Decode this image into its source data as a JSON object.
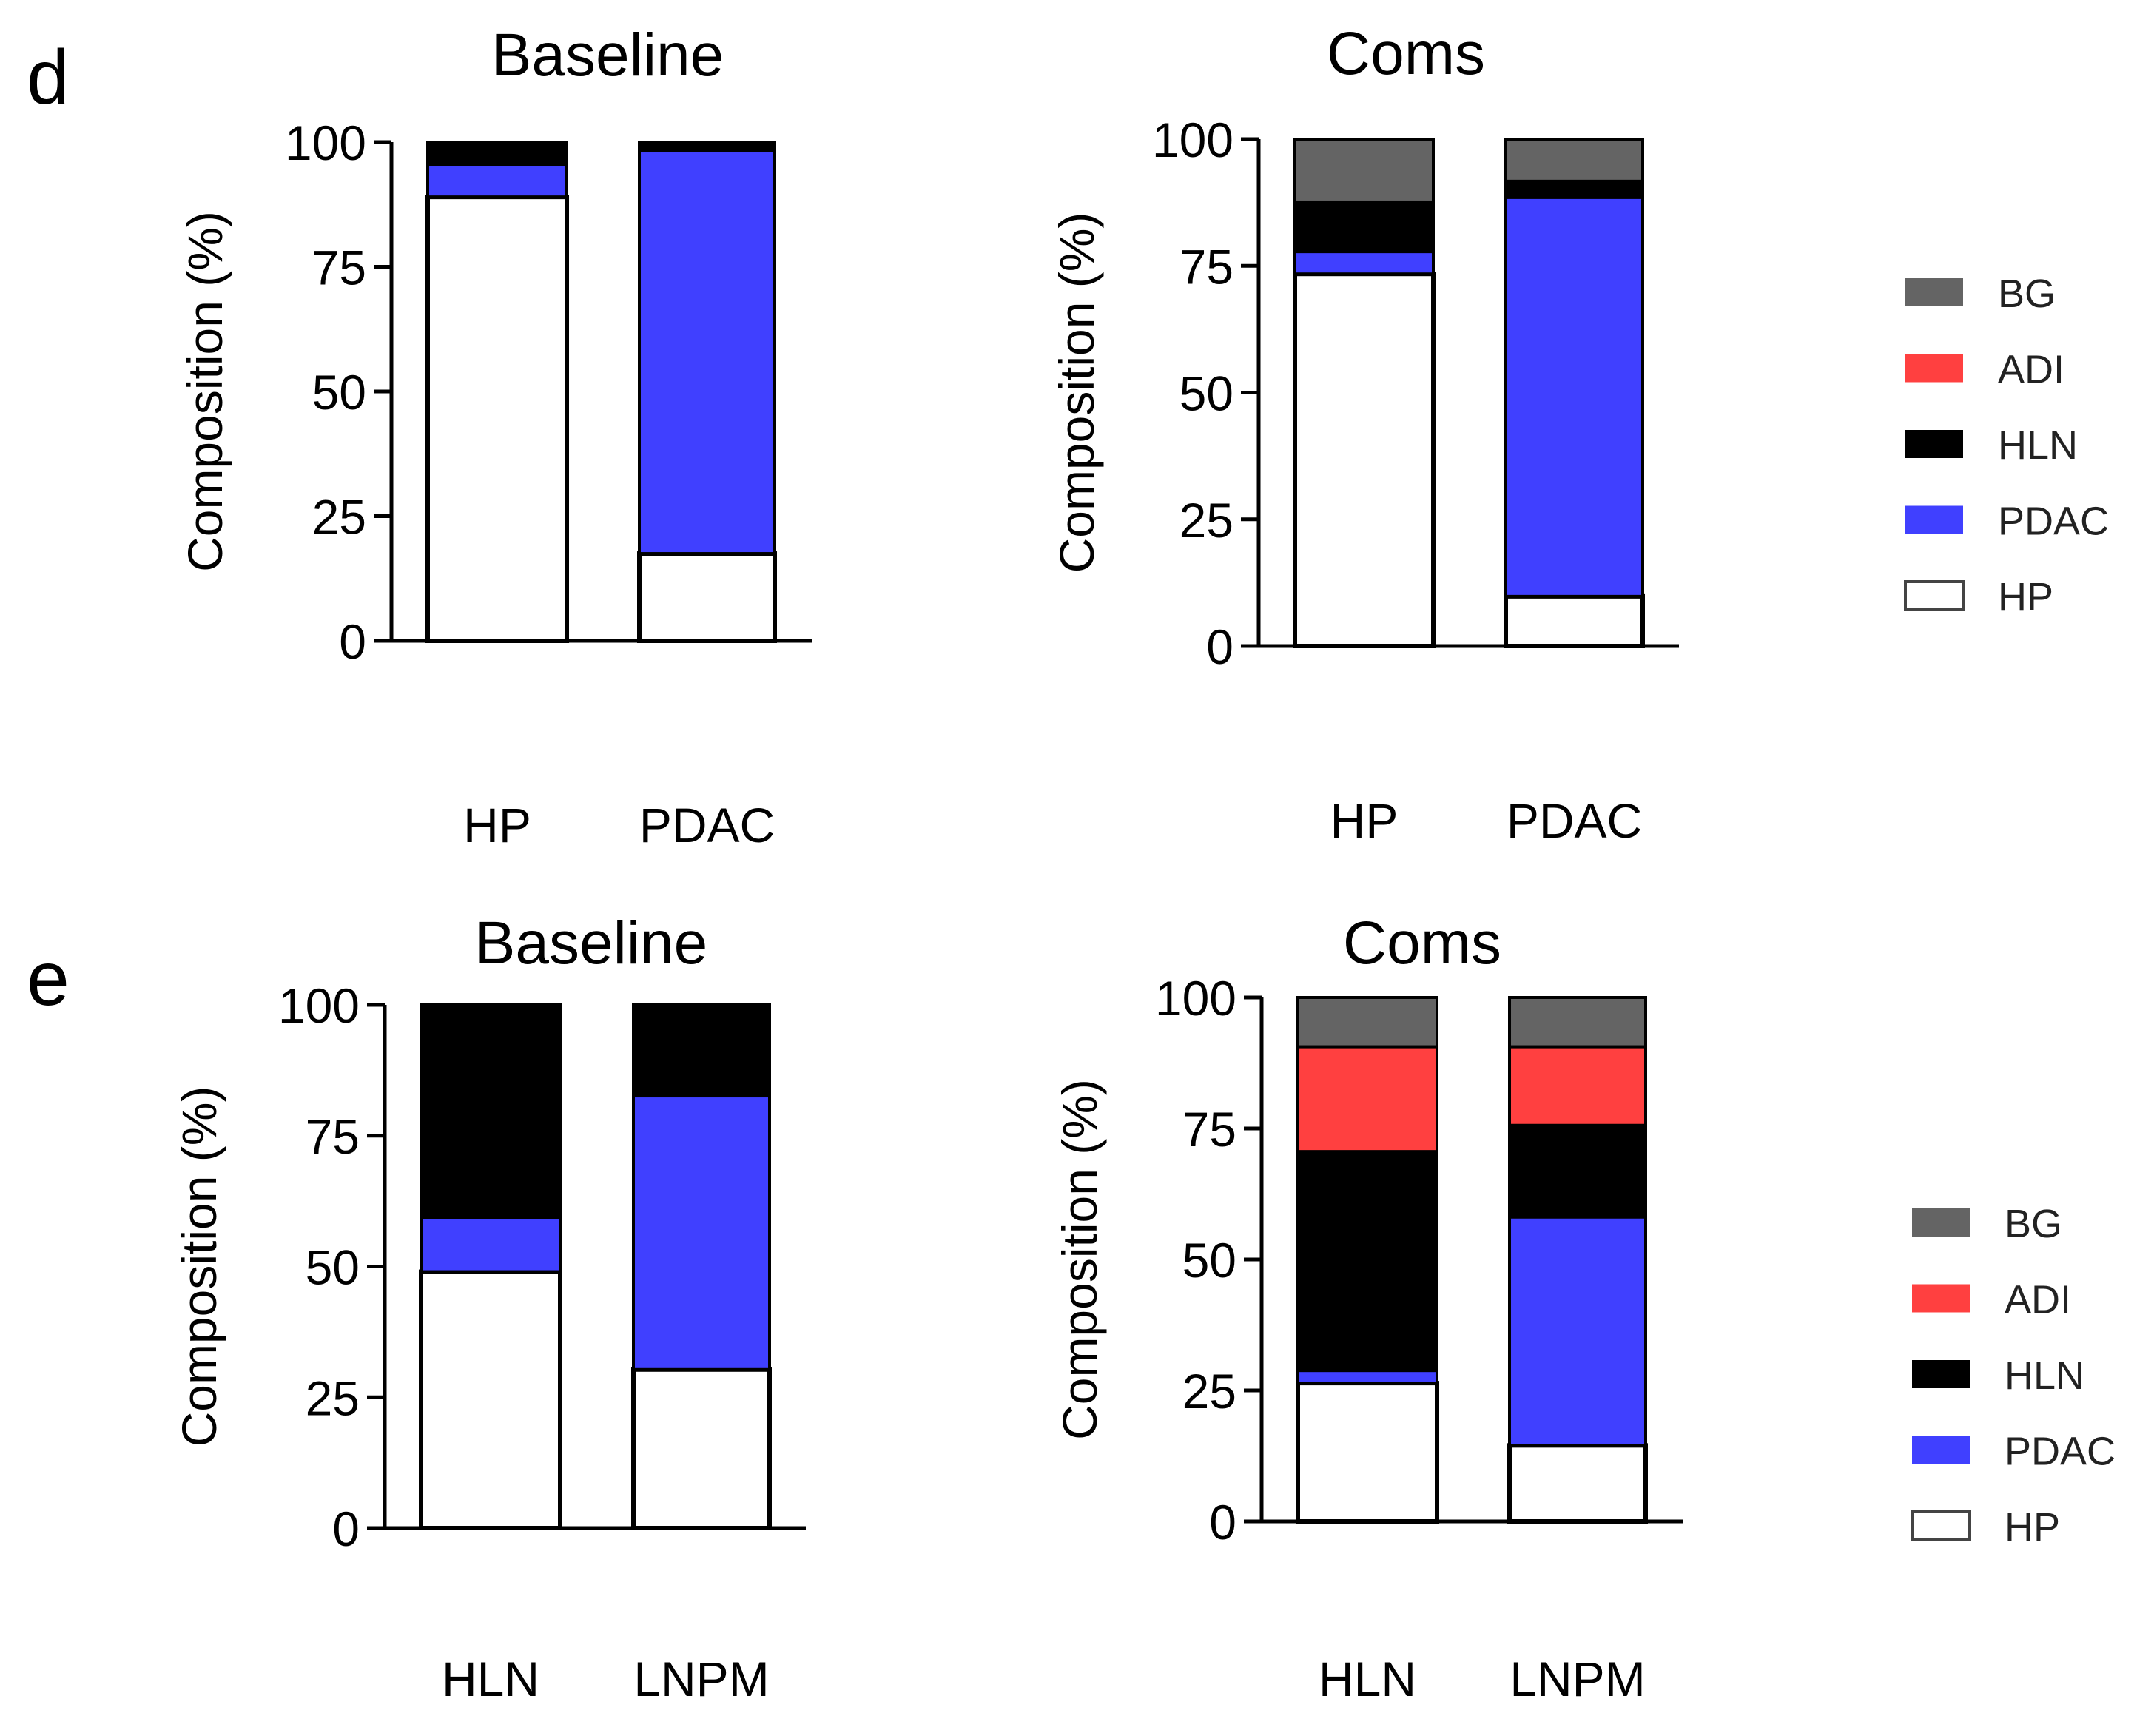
{
  "colors": {
    "BG": "#646464",
    "ADI": "#ff4040",
    "HLN": "#000000",
    "PDAC": "#4040ff",
    "HP": "#ffffff"
  },
  "legend": [
    "BG",
    "ADI",
    "HLN",
    "PDAC",
    "HP"
  ],
  "chart_data": [
    {
      "panel": "d",
      "type": "bar",
      "stacked": true,
      "title": "Baseline",
      "ylabel": "Composition (%)",
      "ylim": [
        0,
        100
      ],
      "yticks": [
        "0",
        "25",
        "50",
        "75",
        "100"
      ],
      "categories": [
        "HP",
        "PDAC"
      ],
      "series": [
        {
          "name": "HP",
          "values": [
            89,
            17.5
          ]
        },
        {
          "name": "PDAC",
          "values": [
            6.5,
            80.8
          ]
        },
        {
          "name": "HLN",
          "values": [
            4.5,
            1.7
          ]
        },
        {
          "name": "ADI",
          "values": [
            0,
            0
          ]
        },
        {
          "name": "BG",
          "values": [
            0,
            0
          ]
        }
      ]
    },
    {
      "panel": "",
      "type": "bar",
      "stacked": true,
      "title": "Coms",
      "ylabel": "Composition (%)",
      "ylim": [
        0,
        100
      ],
      "yticks": [
        "0",
        "25",
        "50",
        "75",
        "100"
      ],
      "categories": [
        "HP",
        "PDAC"
      ],
      "series": [
        {
          "name": "HP",
          "values": [
            73.4,
            9.8
          ]
        },
        {
          "name": "PDAC",
          "values": [
            4.4,
            78.7
          ]
        },
        {
          "name": "HLN",
          "values": [
            9.8,
            3.2
          ]
        },
        {
          "name": "ADI",
          "values": [
            0,
            0
          ]
        },
        {
          "name": "BG",
          "values": [
            12.4,
            8.3
          ]
        }
      ]
    },
    {
      "panel": "e",
      "type": "bar",
      "stacked": true,
      "title": "Baseline",
      "ylabel": "Composition (%)",
      "ylim": [
        0,
        100
      ],
      "yticks": [
        "0",
        "25",
        "50",
        "75",
        "100"
      ],
      "categories": [
        "HLN",
        "LNPM"
      ],
      "series": [
        {
          "name": "HP",
          "values": [
            49,
            30.3
          ]
        },
        {
          "name": "PDAC",
          "values": [
            10.3,
            52.3
          ]
        },
        {
          "name": "HLN",
          "values": [
            40.7,
            17.4
          ]
        },
        {
          "name": "ADI",
          "values": [
            0,
            0
          ]
        },
        {
          "name": "BG",
          "values": [
            0,
            0
          ]
        }
      ]
    },
    {
      "panel": "",
      "type": "bar",
      "stacked": true,
      "title": "Coms",
      "ylabel": "Composition (%)",
      "ylim": [
        0,
        100
      ],
      "yticks": [
        "0",
        "25",
        "50",
        "75",
        "100"
      ],
      "categories": [
        "HLN",
        "LNPM"
      ],
      "series": [
        {
          "name": "HP",
          "values": [
            26.4,
            14.5
          ]
        },
        {
          "name": "PDAC",
          "values": [
            2.4,
            43.6
          ]
        },
        {
          "name": "HLN",
          "values": [
            41.8,
            17.5
          ]
        },
        {
          "name": "ADI",
          "values": [
            20,
            15
          ]
        },
        {
          "name": "BG",
          "values": [
            9.4,
            9.4
          ]
        }
      ]
    }
  ]
}
